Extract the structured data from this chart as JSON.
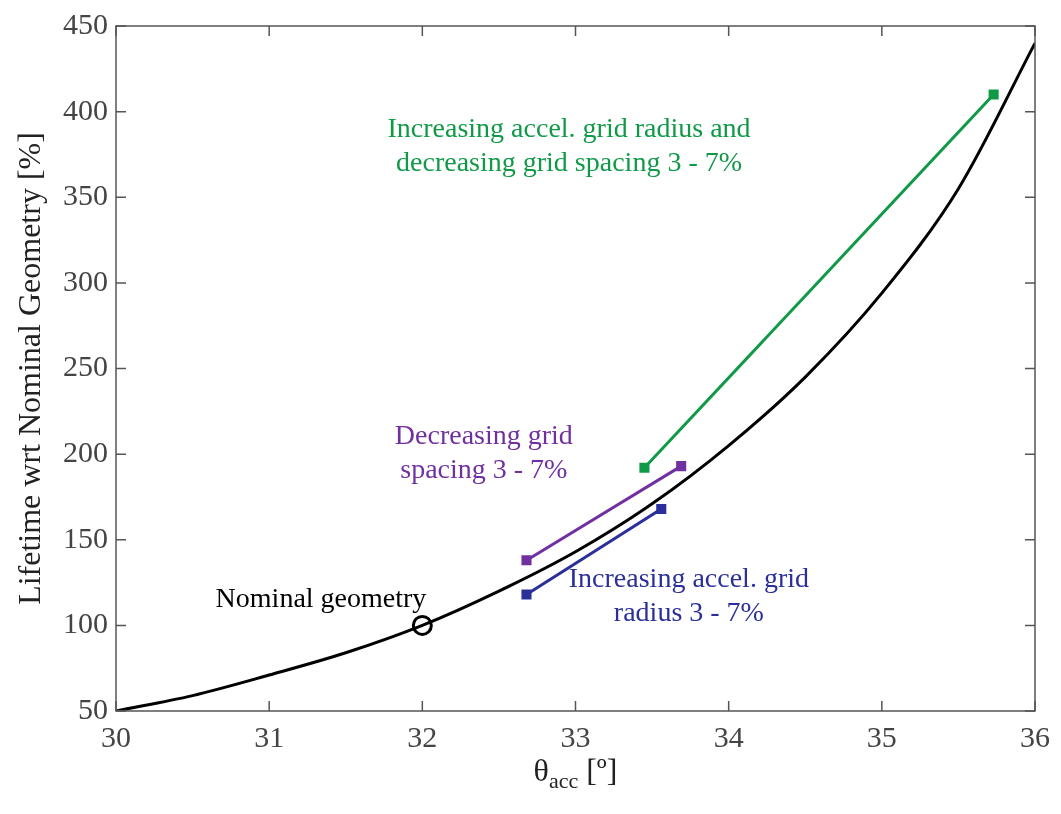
{
  "chart_data": {
    "type": "line",
    "xlabel": "θ$_{acc}$ [º]",
    "ylabel": "Lifetime wrt Nominal Geometry [%]",
    "xlim": [
      30,
      36
    ],
    "xticks": [
      30,
      31,
      32,
      33,
      34,
      35,
      36
    ],
    "ylim": [
      50,
      450
    ],
    "yticks": [
      50,
      100,
      150,
      200,
      250,
      300,
      350,
      400,
      450
    ],
    "grid": false,
    "legend": false,
    "series": [
      {
        "type": "line",
        "color": "#000000",
        "marker": "none",
        "x": [
          30,
          30.5,
          31,
          31.5,
          32,
          32.5,
          33,
          33.5,
          34,
          34.5,
          35,
          35.5,
          36
        ],
        "values": [
          50,
          59,
          71,
          84,
          100,
          120,
          143,
          171,
          205,
          245,
          294,
          355,
          440
        ]
      },
      {
        "type": "scatter",
        "color": "#000000",
        "marker": "circle",
        "x": [
          32
        ],
        "values": [
          100
        ]
      },
      {
        "type": "line",
        "name": "Increasing accel. grid radius and decreasing grid spacing 3 - 7%",
        "color": "#109a48",
        "marker": "square",
        "x": [
          33.45,
          35.73
        ],
        "values": [
          192,
          410
        ]
      },
      {
        "type": "line",
        "name": "Decreasing grid spacing 3 - 7%",
        "color": "#7030a0",
        "marker": "square",
        "x": [
          32.68,
          33.69
        ],
        "values": [
          138,
          193
        ]
      },
      {
        "type": "line",
        "name": "Increasing accel. grid radius 3 - 7%",
        "color": "#2b2f9a",
        "marker": "square",
        "x": [
          32.68,
          33.56
        ],
        "values": [
          118,
          168
        ]
      }
    ],
    "annotations": [
      {
        "text": "Nominal geometry",
        "x": 32,
        "y": 100
      }
    ]
  }
}
